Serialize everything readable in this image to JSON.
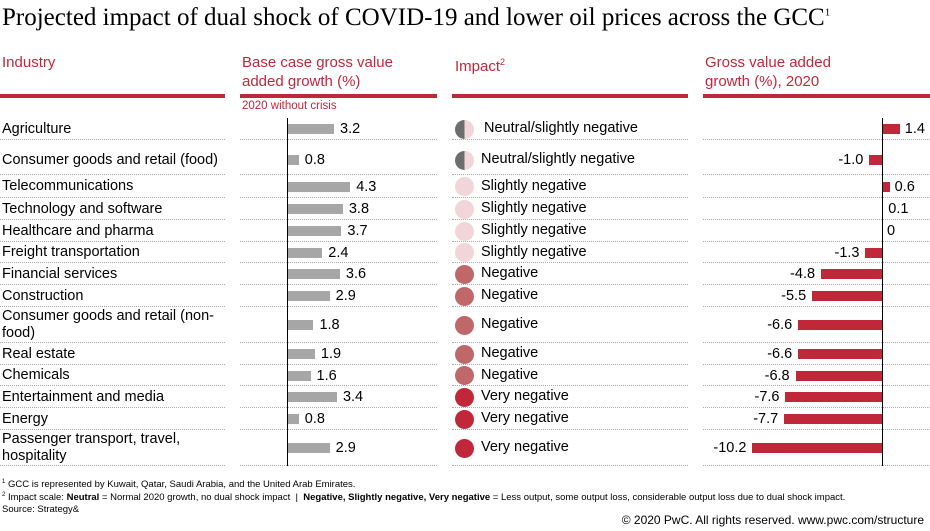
{
  "chart_data": {
    "type": "table",
    "title": "Projected impact of dual shock of COVID-19 and lower oil prices across the GCC",
    "title_sup": "1",
    "columns": {
      "industry": "Industry",
      "base": "Base case gross value added growth (%)",
      "base_sub": "2020 without crisis",
      "impact": "Impact",
      "impact_sup": "2",
      "gva": "Gross value added growth (%), 2020"
    },
    "colors": {
      "accent": "#c0283a",
      "base_bar": "#a6a6a6",
      "neutral_half": "#6d6d6d",
      "slightly_negative": "#f2d5d8",
      "negative": "#c0676a",
      "very_negative": "#c0283a"
    },
    "rows": [
      {
        "industry": "Agriculture",
        "base": 3.2,
        "impact": "Neutral/slightly negative",
        "level": "neutral",
        "gva": 1.4,
        "gva_label": "1.4"
      },
      {
        "industry": "Consumer goods and retail (food)",
        "base": 0.8,
        "impact": "Neutral/slightly negative",
        "level": "neutral",
        "gva": -1.0,
        "gva_label": "-1.0"
      },
      {
        "industry": "Telecommunications",
        "base": 4.3,
        "impact": "Slightly negative",
        "level": "slight",
        "gva": 0.6,
        "gva_label": "0.6"
      },
      {
        "industry": "Technology and software",
        "base": 3.8,
        "impact": "Slightly negative",
        "level": "slight",
        "gva": 0.1,
        "gva_label": "0.1"
      },
      {
        "industry": "Healthcare and pharma",
        "base": 3.7,
        "impact": "Slightly negative",
        "level": "slight",
        "gva": 0,
        "gva_label": "0"
      },
      {
        "industry": "Freight transportation",
        "base": 2.4,
        "impact": "Slightly negative",
        "level": "slight",
        "gva": -1.3,
        "gva_label": "-1.3"
      },
      {
        "industry": "Financial services",
        "base": 3.6,
        "impact": "Negative",
        "level": "neg",
        "gva": -4.8,
        "gva_label": "-4.8"
      },
      {
        "industry": "Construction",
        "base": 2.9,
        "impact": "Negative",
        "level": "neg",
        "gva": -5.5,
        "gva_label": "-5.5"
      },
      {
        "industry": "Consumer goods and retail (non-food)",
        "base": 1.8,
        "impact": "Negative",
        "level": "neg",
        "gva": -6.6,
        "gva_label": "-6.6"
      },
      {
        "industry": "Real estate",
        "base": 1.9,
        "impact": "Negative",
        "level": "neg",
        "gva": -6.6,
        "gva_label": "-6.6"
      },
      {
        "industry": "Chemicals",
        "base": 1.6,
        "impact": "Negative",
        "level": "neg",
        "gva": -6.8,
        "gva_label": "-6.8"
      },
      {
        "industry": "Entertainment and media",
        "base": 3.4,
        "impact": "Very negative",
        "level": "very",
        "gva": -7.6,
        "gva_label": "-7.6"
      },
      {
        "industry": "Energy",
        "base": 0.8,
        "impact": "Very negative",
        "level": "very",
        "gva": -7.7,
        "gva_label": "-7.7"
      },
      {
        "industry": "Passenger transport, travel, hospitality",
        "base": 2.9,
        "impact": "Very negative",
        "level": "very",
        "gva": -10.2,
        "gva_label": "-10.2"
      }
    ]
  },
  "footnotes": {
    "fn1_sup": "1",
    "fn1": "GCC is represented by Kuwait, Qatar, Saudi Arabia, and the United Arab Emirates.",
    "fn2_sup": "2",
    "fn2_a": "Impact scale: ",
    "fn2_b": "Neutral",
    "fn2_c": " = Normal 2020 growth, no dual shock impact  |  ",
    "fn2_d": "Negative, Slightly negative, Very negative",
    "fn2_e": " = Less output, some output loss, considerable output loss due to dual shock impact.",
    "source": "Source: Strategy&"
  },
  "copyright": "© 2020 PwC. All rights reserved. www.pwc.com/structure"
}
